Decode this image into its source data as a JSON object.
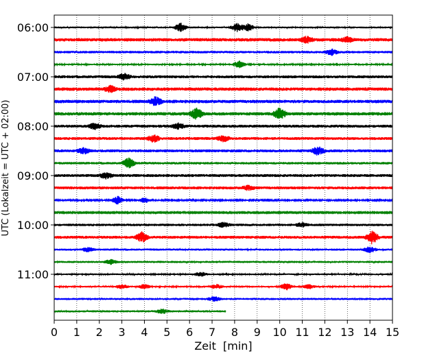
{
  "chart_data": {
    "type": "line",
    "subtype": "helicorder-seismogram",
    "title": "",
    "xlabel": "Zeit  [min]",
    "ylabel": "UTC (Lokalzeit = UTC + 02:00)",
    "xlim": [
      0,
      15
    ],
    "x_ticks": [
      "0",
      "1",
      "2",
      "3",
      "4",
      "5",
      "6",
      "7",
      "8",
      "9",
      "10",
      "11",
      "12",
      "13",
      "14",
      "15"
    ],
    "y_tick_labels": [
      "06:00",
      "07:00",
      "08:00",
      "09:00",
      "10:00",
      "11:00"
    ],
    "vertical_grid": true,
    "grid_style": "dotted",
    "line_minutes": 15,
    "colors": [
      "#000000",
      "#ff0000",
      "#0000ff",
      "#008000"
    ],
    "traces": [
      {
        "utc": "06:00",
        "color": "#000000",
        "end_minute": 15,
        "amplitude": 0.22,
        "events": [
          {
            "minute": 5.6,
            "amplitude": 0.6
          },
          {
            "minute": 8.1,
            "amplitude": 0.6
          },
          {
            "minute": 8.6,
            "amplitude": 0.5
          }
        ]
      },
      {
        "utc": "06:15",
        "color": "#ff0000",
        "end_minute": 15,
        "amplitude": 0.4,
        "events": [
          {
            "minute": 11.2,
            "amplitude": 0.4
          },
          {
            "minute": 13.0,
            "amplitude": 0.3
          }
        ]
      },
      {
        "utc": "06:30",
        "color": "#0000ff",
        "end_minute": 15,
        "amplitude": 0.3,
        "events": [
          {
            "minute": 12.3,
            "amplitude": 0.4
          }
        ]
      },
      {
        "utc": "06:45",
        "color": "#008000",
        "end_minute": 15,
        "amplitude": 0.18,
        "events": [
          {
            "minute": 8.2,
            "amplitude": 0.5
          }
        ]
      },
      {
        "utc": "07:00",
        "color": "#000000",
        "end_minute": 15,
        "amplitude": 0.35,
        "events": [
          {
            "minute": 3.1,
            "amplitude": 0.4
          }
        ]
      },
      {
        "utc": "07:15",
        "color": "#ff0000",
        "end_minute": 15,
        "amplitude": 0.4,
        "events": [
          {
            "minute": 2.5,
            "amplitude": 0.4
          }
        ]
      },
      {
        "utc": "07:30",
        "color": "#0000ff",
        "end_minute": 15,
        "amplitude": 0.4,
        "events": [
          {
            "minute": 4.5,
            "amplitude": 0.6
          }
        ]
      },
      {
        "utc": "07:45",
        "color": "#008000",
        "end_minute": 15,
        "amplitude": 0.4,
        "events": [
          {
            "minute": 6.3,
            "amplitude": 0.8
          },
          {
            "minute": 10.0,
            "amplitude": 0.8
          }
        ]
      },
      {
        "utc": "08:00",
        "color": "#000000",
        "end_minute": 15,
        "amplitude": 0.35,
        "events": [
          {
            "minute": 1.8,
            "amplitude": 0.4
          },
          {
            "minute": 5.5,
            "amplitude": 0.4
          }
        ]
      },
      {
        "utc": "08:15",
        "color": "#ff0000",
        "end_minute": 15,
        "amplitude": 0.35,
        "events": [
          {
            "minute": 4.4,
            "amplitude": 0.5
          },
          {
            "minute": 7.5,
            "amplitude": 0.4
          }
        ]
      },
      {
        "utc": "08:30",
        "color": "#0000ff",
        "end_minute": 15,
        "amplitude": 0.35,
        "events": [
          {
            "minute": 1.3,
            "amplitude": 0.4
          },
          {
            "minute": 11.7,
            "amplitude": 0.6
          }
        ]
      },
      {
        "utc": "08:45",
        "color": "#008000",
        "end_minute": 15,
        "amplitude": 0.3,
        "events": [
          {
            "minute": 3.3,
            "amplitude": 0.7
          }
        ]
      },
      {
        "utc": "09:00",
        "color": "#000000",
        "end_minute": 15,
        "amplitude": 0.35,
        "events": [
          {
            "minute": 2.3,
            "amplitude": 0.4
          }
        ]
      },
      {
        "utc": "09:15",
        "color": "#ff0000",
        "end_minute": 15,
        "amplitude": 0.35,
        "events": [
          {
            "minute": 8.6,
            "amplitude": 0.3
          }
        ]
      },
      {
        "utc": "09:30",
        "color": "#0000ff",
        "end_minute": 15,
        "amplitude": 0.15,
        "events": [
          {
            "minute": 2.8,
            "amplitude": 0.6
          },
          {
            "minute": 4.0,
            "amplitude": 0.4
          }
        ]
      },
      {
        "utc": "09:45",
        "color": "#008000",
        "end_minute": 15,
        "amplitude": 0.12,
        "events": []
      },
      {
        "utc": "10:00",
        "color": "#000000",
        "end_minute": 15,
        "amplitude": 0.3,
        "events": [
          {
            "minute": 7.5,
            "amplitude": 0.3
          },
          {
            "minute": 11.0,
            "amplitude": 0.3
          }
        ]
      },
      {
        "utc": "10:15",
        "color": "#ff0000",
        "end_minute": 15,
        "amplitude": 0.35,
        "events": [
          {
            "minute": 3.9,
            "amplitude": 0.7
          },
          {
            "minute": 14.1,
            "amplitude": 0.9
          }
        ]
      },
      {
        "utc": "10:30",
        "color": "#0000ff",
        "end_minute": 15,
        "amplitude": 0.25,
        "events": [
          {
            "minute": 1.5,
            "amplitude": 0.3
          },
          {
            "minute": 14.0,
            "amplitude": 0.4
          }
        ]
      },
      {
        "utc": "10:45",
        "color": "#008000",
        "end_minute": 15,
        "amplitude": 0.25,
        "events": [
          {
            "minute": 2.5,
            "amplitude": 0.3
          }
        ]
      },
      {
        "utc": "11:00",
        "color": "#000000",
        "end_minute": 15,
        "amplitude": 0.2,
        "events": [
          {
            "minute": 6.5,
            "amplitude": 0.3
          }
        ]
      },
      {
        "utc": "11:15",
        "color": "#ff0000",
        "end_minute": 15,
        "amplitude": 0.2,
        "events": [
          {
            "minute": 3.0,
            "amplitude": 0.3
          },
          {
            "minute": 4.0,
            "amplitude": 0.3
          },
          {
            "minute": 7.2,
            "amplitude": 0.3
          },
          {
            "minute": 10.3,
            "amplitude": 0.5
          },
          {
            "minute": 11.3,
            "amplitude": 0.3
          }
        ]
      },
      {
        "utc": "11:30",
        "color": "#0000ff",
        "end_minute": 15,
        "amplitude": 0.25,
        "events": [
          {
            "minute": 7.1,
            "amplitude": 0.3
          }
        ]
      },
      {
        "utc": "11:45",
        "color": "#008000",
        "end_minute": 7.6,
        "amplitude": 0.25,
        "events": [
          {
            "minute": 4.8,
            "amplitude": 0.3
          }
        ]
      }
    ]
  }
}
